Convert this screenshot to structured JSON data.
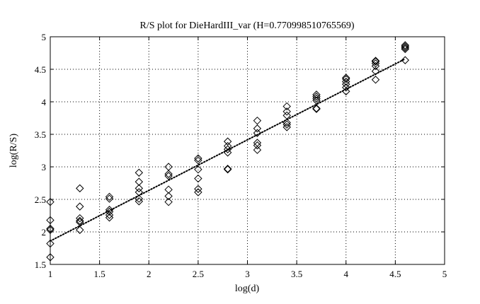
{
  "chart_data": {
    "type": "scatter",
    "title": "R/S plot for DieHardIII_var (H=0.770998510765569)",
    "xlabel": "log(d)",
    "ylabel": "log(R/S)",
    "xlim": [
      1,
      5
    ],
    "ylim": [
      1.5,
      5
    ],
    "xticks": [
      "1",
      "1.5",
      "2",
      "2.5",
      "3",
      "3.5",
      "4",
      "4.5",
      "5"
    ],
    "yticks": [
      "1.5",
      "2",
      "2.5",
      "3",
      "3.5",
      "4",
      "4.5",
      "5"
    ],
    "grid": true,
    "marker": "diamond",
    "points": [
      [
        1.0,
        1.61
      ],
      [
        1.0,
        1.82
      ],
      [
        1.0,
        2.03
      ],
      [
        1.0,
        2.05
      ],
      [
        1.0,
        2.18
      ],
      [
        1.0,
        2.46
      ],
      [
        1.3,
        2.03
      ],
      [
        1.3,
        2.15
      ],
      [
        1.3,
        2.17
      ],
      [
        1.3,
        2.21
      ],
      [
        1.3,
        2.39
      ],
      [
        1.3,
        2.67
      ],
      [
        1.6,
        2.22
      ],
      [
        1.6,
        2.26
      ],
      [
        1.6,
        2.31
      ],
      [
        1.6,
        2.34
      ],
      [
        1.6,
        2.51
      ],
      [
        1.6,
        2.54
      ],
      [
        1.9,
        2.47
      ],
      [
        1.9,
        2.51
      ],
      [
        1.9,
        2.61
      ],
      [
        1.9,
        2.67
      ],
      [
        1.9,
        2.77
      ],
      [
        1.9,
        2.91
      ],
      [
        2.2,
        2.46
      ],
      [
        2.2,
        2.55
      ],
      [
        2.2,
        2.65
      ],
      [
        2.2,
        2.86
      ],
      [
        2.2,
        2.89
      ],
      [
        2.2,
        3.0
      ],
      [
        2.5,
        2.61
      ],
      [
        2.5,
        2.66
      ],
      [
        2.5,
        2.82
      ],
      [
        2.5,
        2.96
      ],
      [
        2.5,
        3.1
      ],
      [
        2.5,
        3.13
      ],
      [
        2.8,
        2.96
      ],
      [
        2.8,
        2.97
      ],
      [
        2.8,
        3.22
      ],
      [
        2.8,
        3.27
      ],
      [
        2.8,
        3.32
      ],
      [
        2.8,
        3.39
      ],
      [
        3.1,
        3.26
      ],
      [
        3.1,
        3.33
      ],
      [
        3.1,
        3.37
      ],
      [
        3.1,
        3.52
      ],
      [
        3.1,
        3.59
      ],
      [
        3.1,
        3.71
      ],
      [
        3.4,
        3.61
      ],
      [
        3.4,
        3.65
      ],
      [
        3.4,
        3.68
      ],
      [
        3.4,
        3.79
      ],
      [
        3.4,
        3.85
      ],
      [
        3.4,
        3.93
      ],
      [
        3.7,
        3.89
      ],
      [
        3.7,
        3.9
      ],
      [
        3.7,
        4.02
      ],
      [
        3.7,
        4.05
      ],
      [
        3.7,
        4.08
      ],
      [
        3.7,
        4.11
      ],
      [
        4.0,
        4.16
      ],
      [
        4.0,
        4.22
      ],
      [
        4.0,
        4.27
      ],
      [
        4.0,
        4.31
      ],
      [
        4.0,
        4.35
      ],
      [
        4.0,
        4.37
      ],
      [
        4.3,
        4.34
      ],
      [
        4.3,
        4.47
      ],
      [
        4.3,
        4.55
      ],
      [
        4.3,
        4.59
      ],
      [
        4.3,
        4.62
      ],
      [
        4.3,
        4.63
      ],
      [
        4.6,
        4.64
      ],
      [
        4.6,
        4.81
      ],
      [
        4.6,
        4.83
      ],
      [
        4.6,
        4.85
      ],
      [
        4.6,
        4.87
      ]
    ],
    "fit_line": {
      "style": "dotted",
      "x": [
        1.0,
        4.6
      ],
      "y": [
        1.86,
        4.66
      ]
    }
  }
}
